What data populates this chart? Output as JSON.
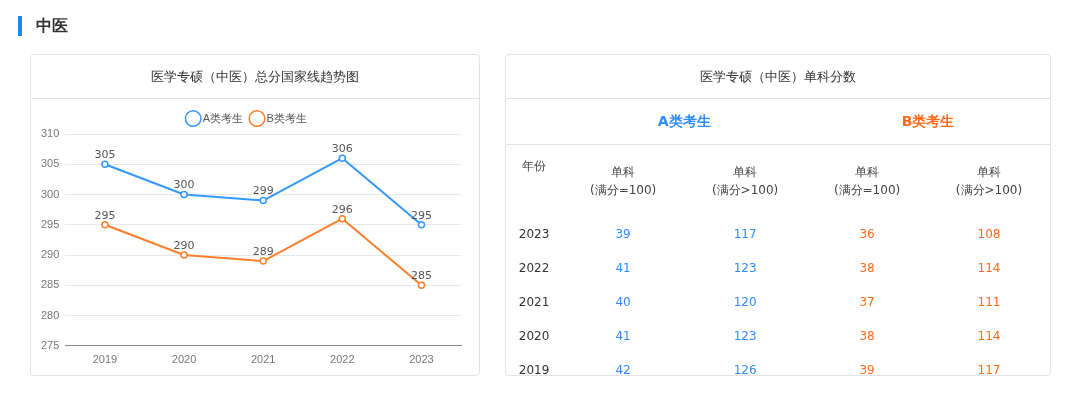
{
  "chart_data": [
    {
      "type": "line",
      "title": "医学专硕（中医）总分国家线趋势图",
      "annotations": [
        "中医"
      ],
      "categories": [
        "2019",
        "2020",
        "2021",
        "2022",
        "2023"
      ],
      "series": [
        {
          "name": "A类考生",
          "color": "#3399ff",
          "values": [
            305,
            300,
            299,
            306,
            295
          ]
        },
        {
          "name": "B类考生",
          "color": "#ff7f2a",
          "values": [
            295,
            290,
            289,
            296,
            285
          ]
        }
      ],
      "ylim": [
        275,
        310
      ],
      "yticks": [
        275,
        280,
        285,
        290,
        295,
        300,
        305,
        310
      ],
      "grid": "y",
      "legend": "top",
      "marker": "circle",
      "data_labels": true
    },
    {
      "type": "heatmap",
      "title": "医学专硕（中医）单科分数",
      "annotations": [
        "A类考生",
        "B类考生"
      ],
      "ylabel": "年份",
      "categories": [
        "单科\n(满分=100)",
        "单科\n(满分>100)",
        "单科\n(满分=100)",
        "单科\n(满分>100)"
      ],
      "y_categories": [
        "2023",
        "2022",
        "2021",
        "2020",
        "2019"
      ],
      "cells": [
        [
          39,
          117,
          36,
          108
        ],
        [
          41,
          123,
          38,
          114
        ],
        [
          40,
          120,
          37,
          111
        ],
        [
          41,
          123,
          38,
          114
        ],
        [
          42,
          126,
          39,
          117
        ]
      ],
      "data_labels": true
    }
  ]
}
